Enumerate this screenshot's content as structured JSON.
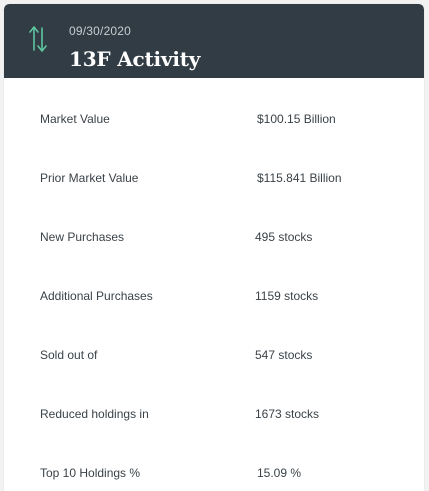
{
  "header": {
    "date": "09/30/2020",
    "title": "13F Activity",
    "icon": "up-down-arrows-icon",
    "accent_color": "#5ec6a0",
    "background_color": "#323c44"
  },
  "rows": [
    {
      "label": "Market Value",
      "value": "$100.15 Billion"
    },
    {
      "label": "Prior Market Value",
      "value": "$115.841 Billion"
    },
    {
      "label": "New Purchases",
      "value": "495 stocks"
    },
    {
      "label": "Additional Purchases",
      "value": "1159 stocks"
    },
    {
      "label": "Sold out of",
      "value": "547 stocks"
    },
    {
      "label": "Reduced holdings in",
      "value": "1673 stocks"
    },
    {
      "label": "Top 10 Holdings %",
      "value": "15.09 %"
    }
  ]
}
